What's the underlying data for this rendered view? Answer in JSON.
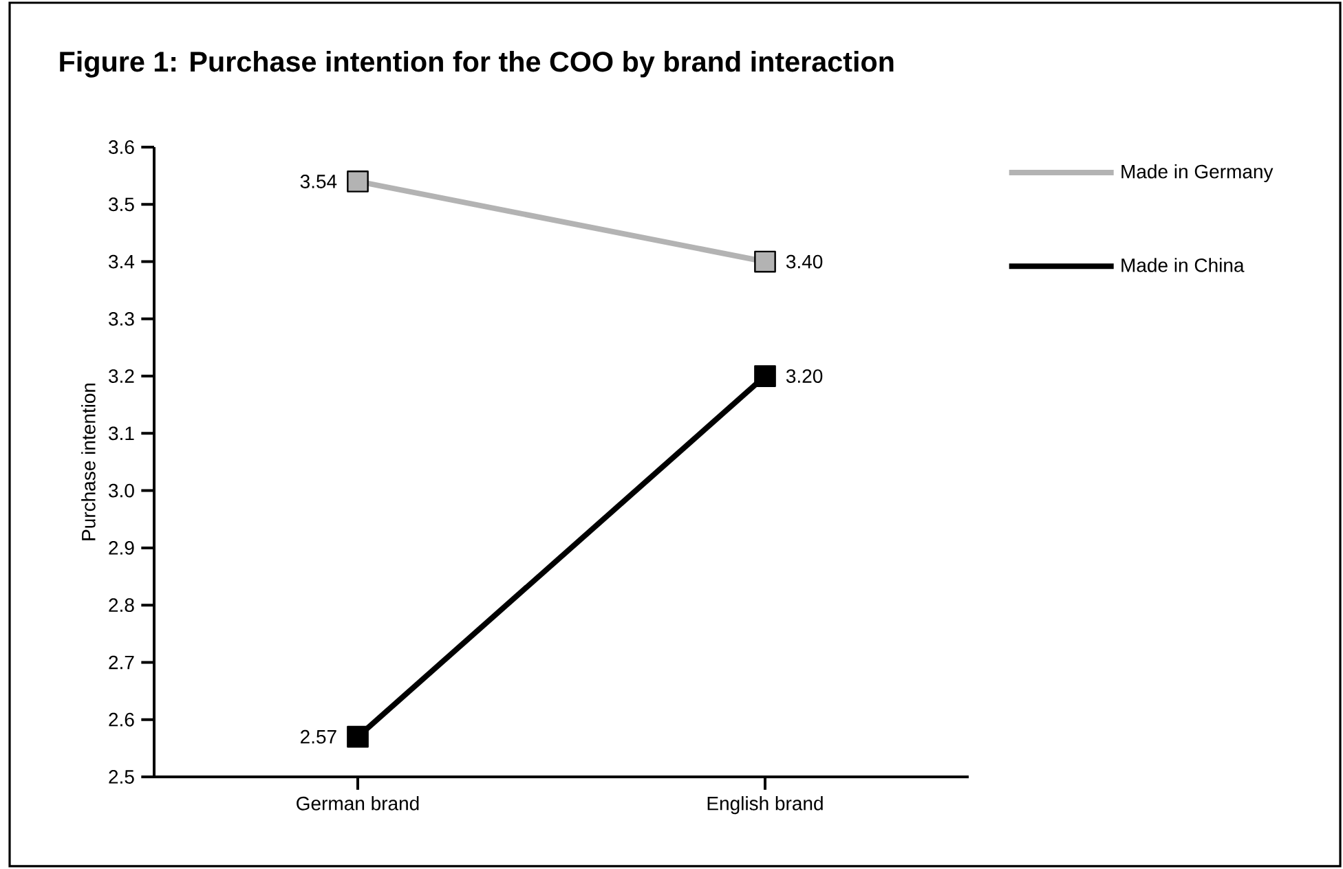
{
  "chart_data": {
    "type": "line",
    "title": "Figure 1: Purchase intention for the COO by brand interaction",
    "ylabel": "Purchase intention",
    "categories": [
      "German brand",
      "English brand"
    ],
    "series": [
      {
        "name": "Made in Germany",
        "color": "#b3b3b3",
        "values": [
          3.54,
          3.4
        ],
        "value_labels": [
          "3.54",
          "3.40"
        ]
      },
      {
        "name": "Made in China",
        "color": "#000000",
        "values": [
          2.57,
          3.2
        ],
        "value_labels": [
          "2.57",
          "3.20"
        ]
      }
    ],
    "ylim": [
      2.5,
      3.6
    ],
    "yticks": [
      2.5,
      2.6,
      2.7,
      2.8,
      2.9,
      {
        "value": 3.0,
        "label": "3.0"
      },
      3.1,
      3.2,
      3.3,
      3.4,
      3.5,
      3.6
    ],
    "marker": "square",
    "line_style": "solid",
    "legend": "top right",
    "grid": false
  }
}
